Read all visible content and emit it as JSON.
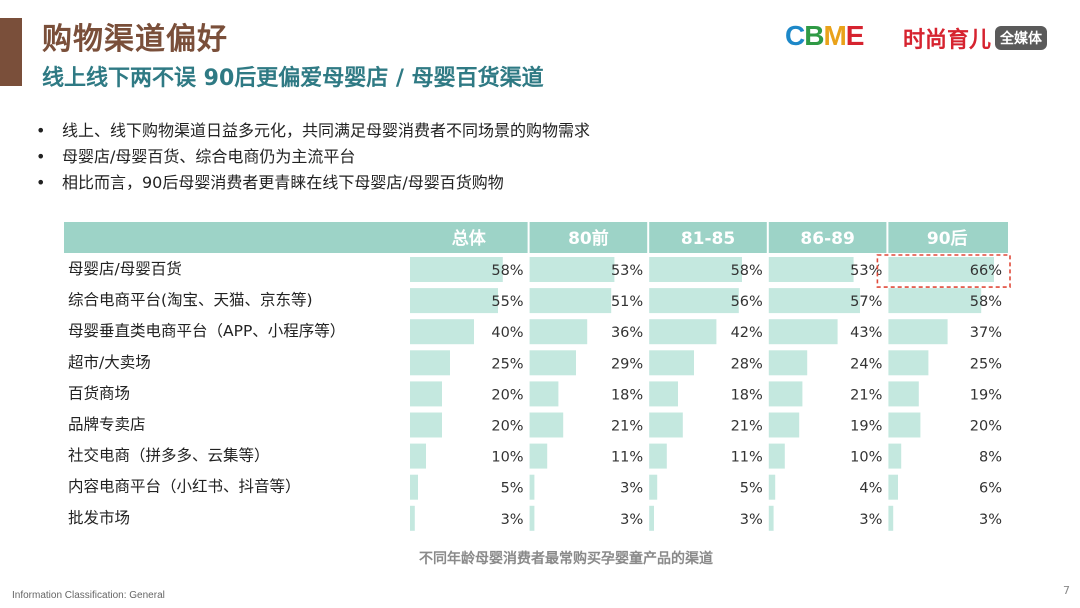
{
  "slide": {
    "title": "购物渠道偏好",
    "subtitle": "线上线下两不误 90后更偏爱母婴店 / 母婴百货渠道",
    "bullets": [
      "线上、线下购物渠道日益多元化，共同满足母婴消费者不同场景的购物需求",
      "母婴店/母婴百货、综合电商仍为主流平台",
      "相比而言，90后母婴消费者更青睐在线下母婴店/母婴百货购物"
    ],
    "logos": {
      "cbme": [
        "C",
        "B",
        "M",
        "E"
      ],
      "cbme_colors": [
        "#1d88c8",
        "#2f9a45",
        "#e9a21a",
        "#d6232f"
      ],
      "shishang_text": "时尚育儿",
      "shishang_badge": "全媒体"
    },
    "caption": "不同年龄母婴消费者最常购买孕婴童产品的渠道",
    "footer_classification": "Information Classification: General",
    "page_number": "7"
  },
  "chart_data": {
    "type": "bar",
    "orientation": "horizontal",
    "groups": [
      "总体",
      "80前",
      "81-85",
      "86-89",
      "90后"
    ],
    "categories": [
      "母婴店/母婴百货",
      "综合电商平台(淘宝、天猫、京东等)",
      "母婴垂直类电商平台（APP、小程序等）",
      "超市/大卖场",
      "百货商场",
      "品牌专卖店",
      "社交电商（拼多多、云集等）",
      "内容电商平台（小红书、抖音等）",
      "批发市场"
    ],
    "series": [
      {
        "name": "总体",
        "values": [
          58,
          55,
          40,
          25,
          20,
          20,
          10,
          5,
          3
        ]
      },
      {
        "name": "80前",
        "values": [
          53,
          51,
          36,
          29,
          18,
          21,
          11,
          3,
          3
        ]
      },
      {
        "name": "81-85",
        "values": [
          58,
          56,
          42,
          28,
          18,
          21,
          11,
          5,
          3
        ]
      },
      {
        "name": "86-89",
        "values": [
          53,
          57,
          43,
          24,
          21,
          19,
          10,
          4,
          3
        ]
      },
      {
        "name": "90后",
        "values": [
          66,
          58,
          37,
          25,
          19,
          20,
          8,
          6,
          3
        ]
      }
    ],
    "value_suffix": "%",
    "xlim": [
      0,
      100
    ],
    "highlight": {
      "series": "90后",
      "category": "母婴店/母婴百货",
      "style": "dashed red box"
    },
    "colors": {
      "header_bg": "#9dd3c7",
      "header_text": "#ffffff",
      "bar": "#c4e8df",
      "highlight": "#e04a3a"
    }
  }
}
